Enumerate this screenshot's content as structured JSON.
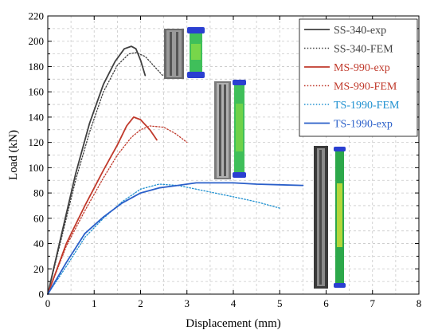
{
  "chart_data": {
    "type": "line",
    "xlabel": "Displacement (mm)",
    "ylabel": "Load (kN)",
    "xlim": [
      0,
      8
    ],
    "ylim": [
      0,
      220
    ],
    "x_ticks": [
      0,
      1,
      2,
      3,
      4,
      5,
      6,
      7,
      8
    ],
    "y_ticks": [
      0,
      10,
      20,
      30,
      40,
      50,
      60,
      70,
      80,
      90,
      100,
      110,
      120,
      130,
      140,
      150,
      160,
      170,
      180,
      190,
      200,
      210,
      220
    ],
    "y_tick_labels": [
      "0",
      "",
      "20",
      "",
      "40",
      "",
      "60",
      "",
      "80",
      "",
      "100",
      "",
      "120",
      "",
      "140",
      "",
      "160",
      "",
      "180",
      "",
      "200",
      "",
      "220"
    ],
    "grid": true,
    "legend_position": "top-right",
    "series": [
      {
        "name": "SS-340-exp",
        "color": "#404040",
        "dash": "solid",
        "points": [
          [
            0,
            0
          ],
          [
            0.3,
            48
          ],
          [
            0.6,
            95
          ],
          [
            0.9,
            135
          ],
          [
            1.2,
            166
          ],
          [
            1.45,
            184
          ],
          [
            1.65,
            194
          ],
          [
            1.8,
            196
          ],
          [
            1.9,
            194
          ],
          [
            2.0,
            185
          ],
          [
            2.1,
            173
          ]
        ]
      },
      {
        "name": "SS-340-FEM",
        "color": "#404040",
        "dash": "dotted",
        "points": [
          [
            0,
            0
          ],
          [
            0.3,
            45
          ],
          [
            0.6,
            90
          ],
          [
            0.9,
            128
          ],
          [
            1.2,
            160
          ],
          [
            1.5,
            181
          ],
          [
            1.75,
            190
          ],
          [
            1.9,
            191
          ],
          [
            2.1,
            188
          ],
          [
            2.3,
            180
          ],
          [
            2.5,
            172
          ]
        ]
      },
      {
        "name": "MS-990-exp",
        "color": "#c0392b",
        "dash": "solid",
        "points": [
          [
            0,
            0
          ],
          [
            0.4,
            40
          ],
          [
            0.8,
            70
          ],
          [
            1.2,
            98
          ],
          [
            1.5,
            118
          ],
          [
            1.7,
            133
          ],
          [
            1.85,
            140
          ],
          [
            2.0,
            138
          ],
          [
            2.2,
            130
          ],
          [
            2.35,
            122
          ]
        ]
      },
      {
        "name": "MS-990-FEM",
        "color": "#c0392b",
        "dash": "dotted",
        "points": [
          [
            0,
            0
          ],
          [
            0.4,
            38
          ],
          [
            0.8,
            66
          ],
          [
            1.2,
            92
          ],
          [
            1.5,
            110
          ],
          [
            1.8,
            124
          ],
          [
            2.0,
            130
          ],
          [
            2.2,
            133
          ],
          [
            2.5,
            132
          ],
          [
            2.75,
            127
          ],
          [
            3.0,
            120
          ]
        ]
      },
      {
        "name": "TS-1990-FEM",
        "color": "#1e90d0",
        "dash": "dotted",
        "points": [
          [
            0,
            0
          ],
          [
            0.4,
            22
          ],
          [
            0.8,
            45
          ],
          [
            1.2,
            60
          ],
          [
            1.6,
            73
          ],
          [
            2.0,
            83
          ],
          [
            2.4,
            87
          ],
          [
            2.8,
            86
          ],
          [
            3.2,
            83
          ],
          [
            3.6,
            80
          ],
          [
            4.0,
            77
          ],
          [
            4.5,
            73
          ],
          [
            5.0,
            68
          ]
        ]
      },
      {
        "name": "TS-1990-exp",
        "color": "#2a5fc9",
        "dash": "solid",
        "points": [
          [
            0,
            0
          ],
          [
            0.4,
            25
          ],
          [
            0.8,
            48
          ],
          [
            1.2,
            61
          ],
          [
            1.6,
            72
          ],
          [
            2.0,
            80
          ],
          [
            2.4,
            84
          ],
          [
            2.8,
            86
          ],
          [
            3.2,
            88
          ],
          [
            3.6,
            88
          ],
          [
            4.0,
            88
          ],
          [
            4.5,
            87
          ],
          [
            5.0,
            86.5
          ],
          [
            5.5,
            86
          ]
        ]
      }
    ]
  },
  "photos": [
    {
      "icon": "specimen-photo-ss-340"
    },
    {
      "icon": "specimen-photo-ms-990"
    },
    {
      "icon": "specimen-photo-ts-1990"
    }
  ]
}
